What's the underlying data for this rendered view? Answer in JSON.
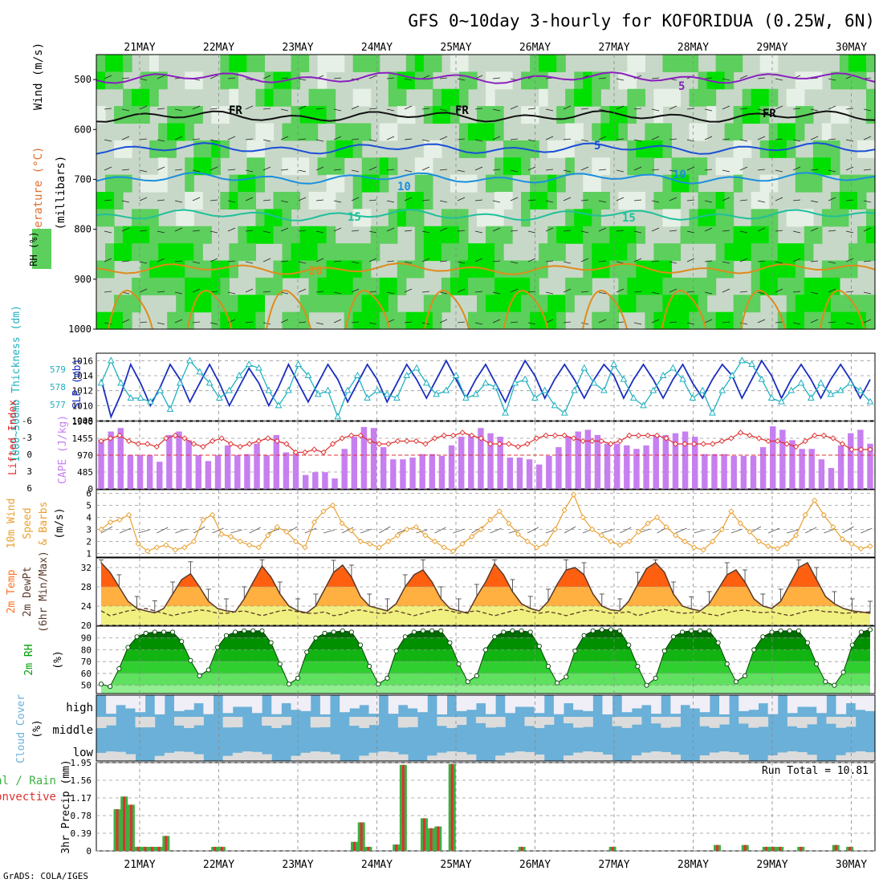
{
  "title": "GFS 0~10day 3-hourly for KOFORIDUA (0.25W, 6N)",
  "credit": "GrADS: COLA/IGES",
  "dates": [
    "21MAY",
    "22MAY",
    "23MAY",
    "24MAY",
    "25MAY",
    "26MAY",
    "27MAY",
    "28MAY",
    "29MAY",
    "30MAY"
  ],
  "colors": {
    "rh_dark": "#00e000",
    "rh_mid": "#5ccf5c",
    "rh_light": "#c8d8c8",
    "rh_pale": "#e6f0e6",
    "temp_purple": "#8a1fbf",
    "temp_blue": "#1a4fd8",
    "temp_sky": "#1a8fe0",
    "temp_teal": "#1fc09a",
    "temp_orange": "#e08a1a",
    "temp_red": "#e0205a",
    "slp": "#1a2fc0",
    "thickness": "#20b0c0",
    "cape_bar": "#c77ff0",
    "lifted": "#e03030",
    "wind10m": "#e8a030",
    "temp2m_hot": "#ff6010",
    "temp2m_warm": "#ffb040",
    "temp2m_mild": "#f0f080",
    "rh2m": "#00a000",
    "cloud": "#6ab0d8",
    "cloud_gap": "#f0eef6",
    "precip_total": "#3cb043",
    "precip_conv": "#e03030"
  },
  "chart_data": [
    {
      "type": "heatmap",
      "panel": "upper-air",
      "ylabel_parts": [
        "RH (%)",
        "Temperature (°C)",
        "Wind (m/s)"
      ],
      "yunit": "(millibars)",
      "yticks": [
        500,
        600,
        700,
        800,
        900,
        1000
      ],
      "ylim": [
        1000,
        450
      ],
      "isotherm_labels": [
        "5",
        "FR",
        "FR",
        "FR",
        "5",
        "10",
        "10",
        "15",
        "15",
        "20"
      ]
    },
    {
      "type": "line",
      "panel": "slp-thickness",
      "ylabel_left": "1000~500mb Thickness (dm)",
      "ylabel_right": "SLP (mb)",
      "yticks_left": [
        577,
        578,
        579
      ],
      "yticks_right": [
        1008,
        1010,
        1012,
        1014,
        1016
      ],
      "ylim_right": [
        1008,
        1017
      ],
      "series": [
        {
          "name": "SLP (mb)",
          "values": [
            1013.5,
            1008.5,
            1011.5,
            1015.5,
            1013,
            1010,
            1012.5,
            1015.5,
            1013.5,
            1010.5,
            1013,
            1015.5,
            1013,
            1010,
            1012.5,
            1015,
            1013,
            1010,
            1012.5,
            1015.5,
            1013,
            1010.5,
            1013,
            1015.5,
            1013.5,
            1010.5,
            1013,
            1015.5,
            1013.5,
            1010.5,
            1013,
            1015.5,
            1013.5,
            1011,
            1013.5,
            1016,
            1013.5,
            1011,
            1013.5,
            1015.5,
            1013,
            1010.5,
            1013.5,
            1016,
            1014,
            1011,
            1013.5,
            1015.5,
            1013.5,
            1011,
            1013.5,
            1015.5,
            1014,
            1011,
            1013.5,
            1015.5,
            1013.5,
            1011,
            1013.5,
            1015.5,
            1013,
            1011,
            1013.5,
            1015.5,
            1014,
            1011,
            1013.5,
            1016,
            1014,
            1011,
            1013.5,
            1015.5,
            1013.5,
            1011,
            1013.5,
            1015.5,
            1013.5,
            1011,
            1013.5
          ]
        },
        {
          "name": "1000~500mb Thickness (dm)",
          "values": [
            1013,
            1016,
            1013,
            1011,
            1011,
            1010.5,
            1012,
            1009.5,
            1013,
            1016,
            1014.5,
            1013,
            1011,
            1012,
            1014,
            1015.5,
            1015,
            1012,
            1010,
            1012,
            1015.5,
            1014,
            1011.5,
            1012,
            1008.5,
            1012,
            1014,
            1011,
            1012,
            1011.5,
            1011,
            1014,
            1015,
            1013,
            1011.5,
            1012,
            1014,
            1011,
            1011.5,
            1013,
            1012.5,
            1009,
            1013,
            1013.5,
            1011,
            1012,
            1010,
            1009,
            1012,
            1015,
            1013,
            1012,
            1015.5,
            1013.5,
            1011,
            1010,
            1012,
            1014,
            1015,
            1013.5,
            1011,
            1012,
            1009,
            1012,
            1014,
            1016,
            1015.5,
            1013.5,
            1011,
            1010.5,
            1012,
            1013,
            1011,
            1013,
            1011.5,
            1012,
            1013,
            1012,
            1010.5
          ]
        }
      ]
    },
    {
      "type": "bar",
      "panel": "cape-lifted",
      "ylabel_left": "Lifted Index",
      "ylabel_right": "CAPE (J/kg)",
      "yticks_left": [
        "-6",
        "-3",
        "0",
        "3",
        "6"
      ],
      "yticks_right": [
        "1940",
        "1455",
        "970",
        "485",
        "0"
      ],
      "ylim_cape": [
        0,
        1940
      ],
      "series": [
        {
          "name": "CAPE (J/kg)",
          "values": [
            1420,
            1650,
            1750,
            970,
            970,
            970,
            780,
            1550,
            1650,
            1400,
            970,
            800,
            970,
            1250,
            970,
            1000,
            1300,
            970,
            1550,
            1050,
            1050,
            400,
            480,
            480,
            300,
            1150,
            1500,
            1780,
            1750,
            1200,
            850,
            850,
            900,
            1000,
            1000,
            950,
            1250,
            1500,
            1550,
            1750,
            1600,
            1500,
            900,
            900,
            850,
            700,
            950,
            1200,
            1500,
            1650,
            1700,
            1550,
            1300,
            1300,
            1250,
            1150,
            1250,
            1550,
            1550,
            1600,
            1650,
            1500,
            1000,
            1000,
            1000,
            950,
            950,
            950,
            1200,
            1800,
            1700,
            1400,
            1150,
            1150,
            850,
            600,
            1250,
            1600,
            1700,
            1300
          ]
        },
        {
          "name": "Lifted Index",
          "values": [
            -2.5,
            -3,
            -3.5,
            -2.5,
            -2,
            -2,
            -1.5,
            -3,
            -3.5,
            -3,
            -2,
            -1.5,
            -2.5,
            -3,
            -2,
            -1.5,
            -2,
            -2.5,
            -3,
            -2.5,
            -2,
            -0.5,
            -0.5,
            -1,
            -0.5,
            -2,
            -3,
            -3.5,
            -3.5,
            -2.5,
            -2,
            -2,
            -2.5,
            -2.5,
            -2.5,
            -2,
            -3,
            -3.5,
            -3.5,
            -4,
            -3.5,
            -3,
            -2,
            -2,
            -2,
            -1.5,
            -2,
            -3,
            -3.5,
            -3.5,
            -3.5,
            -3,
            -2.5,
            -2.5,
            -2.5,
            -2,
            -2.5,
            -3.5,
            -3.5,
            -3.5,
            -3.5,
            -3,
            -2,
            -2,
            -2,
            -2,
            -2,
            -2.5,
            -3,
            -4,
            -3.5,
            -3,
            -2.5,
            -2.5,
            -2,
            -1.5,
            -2.5,
            -3.5,
            -3.5,
            -3,
            -2,
            -1,
            -1,
            -1
          ]
        }
      ]
    },
    {
      "type": "line",
      "panel": "wind10m",
      "ylabel": [
        "10m Wind",
        "Speed",
        "& Barbs",
        "(m/s)"
      ],
      "yticks": [
        1,
        2,
        3,
        4,
        5,
        6
      ],
      "ylim": [
        0.7,
        6.3
      ],
      "series": [
        {
          "name": "10m Wind Speed",
          "values": [
            3.0,
            3.6,
            3.8,
            4.2,
            1.8,
            1.2,
            1.5,
            1.7,
            1.3,
            1.5,
            2.0,
            3.8,
            4.2,
            2.6,
            2.4,
            2.0,
            1.7,
            1.5,
            2.5,
            3.2,
            2.8,
            2.0,
            1.5,
            3.6,
            4.5,
            5.0,
            3.5,
            2.9,
            2.0,
            1.8,
            1.5,
            2.0,
            2.5,
            3.0,
            3.2,
            2.5,
            2.0,
            1.5,
            1.2,
            1.8,
            2.4,
            3.0,
            3.8,
            4.5,
            3.5,
            2.6,
            2.0,
            1.5,
            1.8,
            3.0,
            4.6,
            5.9,
            4.0,
            3.0,
            2.5,
            2.0,
            1.7,
            2.0,
            2.8,
            3.5,
            4.0,
            3.2,
            2.5,
            2.0,
            1.5,
            1.3,
            2.0,
            3.0,
            4.5,
            3.5,
            2.8,
            2.0,
            1.6,
            1.4,
            1.8,
            2.5,
            4.2,
            5.4,
            4.2,
            3.2,
            2.2,
            1.8,
            1.4,
            1.6
          ]
        }
      ]
    },
    {
      "type": "area",
      "panel": "temp2m",
      "ylabel": [
        "2m Temp",
        "2m DewPt",
        "(6hr Min/Max)"
      ],
      "yticks": [
        20,
        24,
        28,
        32
      ],
      "ylim": [
        20,
        34
      ],
      "series": [
        {
          "name": "2m Temp",
          "values": [
            33.0,
            31.0,
            28.0,
            25.0,
            23.5,
            23.0,
            22.6,
            23.5,
            26.5,
            29.5,
            30.7,
            28.0,
            25.0,
            23.5,
            23.0,
            22.8,
            25.5,
            29.0,
            32.3,
            30.0,
            26.5,
            24.0,
            23.0,
            22.6,
            24.0,
            27.5,
            31.0,
            32.5,
            30.0,
            26.0,
            24.0,
            23.5,
            23.0,
            24.5,
            28.0,
            30.5,
            31.5,
            29.0,
            25.5,
            23.5,
            23.0,
            22.5,
            26.0,
            29.0,
            32.8,
            30.5,
            27.0,
            24.5,
            23.5,
            23.0,
            25.0,
            28.5,
            31.5,
            32.0,
            30.5,
            26.5,
            24.0,
            23.2,
            23.0,
            25.0,
            28.5,
            31.8,
            33.0,
            31.0,
            26.5,
            24.0,
            23.4,
            23.0,
            24.5,
            27.5,
            30.5,
            31.5,
            29.0,
            25.5,
            24.0,
            23.5,
            25.0,
            28.5,
            32.0,
            33.0,
            29.5,
            26.0,
            24.5,
            23.5,
            23.0,
            22.8,
            22.5
          ]
        },
        {
          "name": "2m DewPt",
          "values": [
            23.0,
            22.0,
            22.5,
            23.0,
            23.2,
            23.5,
            23.0,
            22.5,
            22.0,
            22.5,
            22.8,
            23.2,
            23.0,
            22.5,
            22.5,
            22.8,
            23.0,
            22.5,
            22.0,
            22.5,
            23.0,
            23.2,
            22.8,
            22.5,
            22.5,
            22.8,
            22.0,
            22.3,
            23.0,
            23.2,
            22.8,
            22.5,
            22.5,
            23.0,
            22.5,
            22.0,
            22.5,
            23.0,
            23.3,
            23.0,
            22.5,
            22.8,
            23.0,
            22.5,
            22.0,
            22.5,
            23.0,
            23.3,
            22.8,
            22.5,
            22.8,
            22.5,
            22.0,
            22.5,
            23.0,
            23.2,
            22.8,
            22.5,
            22.6,
            22.8,
            22.0,
            22.5,
            23.0,
            23.3,
            22.8,
            22.5,
            22.6,
            22.8,
            22.3,
            22.0,
            22.6,
            23.0,
            23.2,
            22.8,
            22.6,
            22.8,
            22.4,
            22.0,
            22.5,
            23.0,
            23.2,
            22.8,
            22.8,
            22.5,
            22.6,
            22.7,
            22.8
          ]
        }
      ]
    },
    {
      "type": "area",
      "panel": "rh2m",
      "ylabel": "2m RH",
      "yunit": "(%)",
      "yticks": [
        50,
        60,
        70,
        80,
        90
      ],
      "ylim": [
        43,
        100
      ],
      "series": [
        {
          "name": "2m RH",
          "values": [
            51,
            49,
            64,
            82,
            91,
            94,
            95,
            95,
            95,
            87,
            71,
            58,
            63,
            82,
            92,
            95,
            96,
            96,
            96,
            86,
            68,
            51,
            56,
            78,
            90,
            94,
            95,
            96,
            95,
            84,
            66,
            51,
            56,
            79,
            91,
            95,
            96,
            96,
            96,
            86,
            68,
            53,
            58,
            80,
            91,
            95,
            96,
            96,
            95,
            83,
            66,
            52,
            57,
            79,
            92,
            96,
            97,
            97,
            96,
            84,
            66,
            50,
            56,
            79,
            91,
            95,
            96,
            96,
            96,
            86,
            68,
            53,
            58,
            80,
            91,
            95,
            96,
            96,
            96,
            86,
            68,
            53,
            50,
            61,
            84,
            95,
            97
          ]
        }
      ]
    },
    {
      "type": "heatmap",
      "panel": "cloud-cover",
      "ylabel": "Cloud Cover",
      "yunit": "(%)",
      "levels": [
        "high",
        "middle",
        "low"
      ]
    },
    {
      "type": "bar",
      "panel": "precip",
      "ylabel": "3hr Precip (mm)",
      "ylabel_left": [
        "Total / Rain",
        "Convective"
      ],
      "yticks": [
        "0",
        "0.39",
        "0.78",
        "1.17",
        "1.56",
        "1.95"
      ],
      "ylim": [
        0,
        1.95
      ],
      "run_total_label": "Run Total = 10.81",
      "series": [
        {
          "name": "Total",
          "values": [
            0.92,
            1.2,
            1.02,
            0.09,
            0.09,
            0.09,
            0.09,
            0.33,
            0,
            0,
            0,
            0,
            0,
            0,
            0.09,
            0.09,
            0,
            0,
            0,
            0,
            0,
            0,
            0,
            0,
            0,
            0,
            0,
            0,
            0,
            0,
            0,
            0,
            0,
            0,
            0.2,
            0.63,
            0.09,
            0,
            0,
            0,
            0.14,
            1.9,
            0,
            0,
            0.72,
            0.5,
            0.54,
            0,
            1.92,
            0,
            0,
            0,
            0,
            0,
            0,
            0,
            0,
            0,
            0.09,
            0,
            0,
            0,
            0,
            0,
            0,
            0,
            0,
            0,
            0,
            0,
            0,
            0.09,
            0,
            0,
            0,
            0,
            0,
            0,
            0,
            0,
            0,
            0,
            0,
            0,
            0,
            0,
            0.13,
            0,
            0,
            0,
            0.13,
            0,
            0,
            0.09,
            0.09,
            0.09,
            0,
            0,
            0.09,
            0,
            0,
            0,
            0,
            0.13,
            0,
            0.09,
            0
          ]
        }
      ]
    }
  ]
}
